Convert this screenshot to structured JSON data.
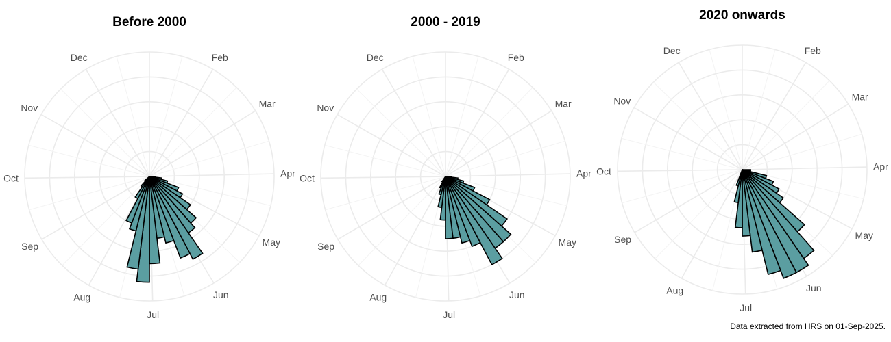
{
  "caption": "Data extracted from HRS on 01-Sep-2025.",
  "colors": {
    "bar_fill": "#5b9ea1",
    "bar_edge": "#000000",
    "grid": "#ebebeb",
    "label": "#4d4d4d"
  },
  "chart_data": [
    {
      "type": "polar-histogram",
      "title": "Before 2000",
      "angular_ticks": [
        "Feb",
        "Mar",
        "Apr",
        "May",
        "Jun",
        "Jul",
        "Aug",
        "Sep",
        "Oct",
        "Nov",
        "Dec"
      ],
      "angular_unit": "week of year",
      "bins": [
        {
          "week": 14,
          "count": 1
        },
        {
          "week": 15,
          "count": 2
        },
        {
          "week": 16,
          "count": 3
        },
        {
          "week": 17,
          "count": 5
        },
        {
          "week": 18,
          "count": 6
        },
        {
          "week": 19,
          "count": 8
        },
        {
          "week": 20,
          "count": 10
        },
        {
          "week": 21,
          "count": 11
        },
        {
          "week": 22,
          "count": 15
        },
        {
          "week": 23,
          "count": 14
        },
        {
          "week": 24,
          "count": 11
        },
        {
          "week": 25,
          "count": 10
        },
        {
          "week": 26,
          "count": 14
        },
        {
          "week": 27,
          "count": 17
        },
        {
          "week": 28,
          "count": 15
        },
        {
          "week": 29,
          "count": 9
        },
        {
          "week": 30,
          "count": 8
        },
        {
          "week": 31,
          "count": 4
        },
        {
          "week": 32,
          "count": 2
        },
        {
          "week": 33,
          "count": 1
        }
      ],
      "radial_gridlines": [
        4,
        8,
        12,
        16,
        20
      ]
    },
    {
      "type": "polar-histogram",
      "title": "2000 - 2019",
      "angular_ticks": [
        "Feb",
        "Mar",
        "Apr",
        "May",
        "Jun",
        "Jul",
        "Aug",
        "Sep",
        "Oct",
        "Nov",
        "Dec"
      ],
      "angular_unit": "week of year",
      "bins": [
        {
          "week": 14,
          "count": 1
        },
        {
          "week": 15,
          "count": 2
        },
        {
          "week": 16,
          "count": 3
        },
        {
          "week": 17,
          "count": 5
        },
        {
          "week": 18,
          "count": 8
        },
        {
          "week": 19,
          "count": 12
        },
        {
          "week": 20,
          "count": 14
        },
        {
          "week": 21,
          "count": 14
        },
        {
          "week": 22,
          "count": 16
        },
        {
          "week": 23,
          "count": 12
        },
        {
          "week": 24,
          "count": 11
        },
        {
          "week": 25,
          "count": 10
        },
        {
          "week": 26,
          "count": 10
        },
        {
          "week": 27,
          "count": 7
        },
        {
          "week": 28,
          "count": 5
        },
        {
          "week": 29,
          "count": 3
        },
        {
          "week": 30,
          "count": 2
        },
        {
          "week": 31,
          "count": 1
        }
      ],
      "radial_gridlines": [
        4,
        8,
        12,
        16,
        20
      ]
    },
    {
      "type": "polar-histogram",
      "title": "2020 onwards",
      "angular_ticks": [
        "Feb",
        "Mar",
        "Apr",
        "May",
        "Jun",
        "Jul",
        "Aug",
        "Sep",
        "Oct",
        "Nov",
        "Dec"
      ],
      "angular_unit": "week of year",
      "bins": [
        {
          "week": 14,
          "count": 1
        },
        {
          "week": 15,
          "count": 1
        },
        {
          "week": 16,
          "count": 3
        },
        {
          "week": 17,
          "count": 4
        },
        {
          "week": 18,
          "count": 5
        },
        {
          "week": 19,
          "count": 6
        },
        {
          "week": 20,
          "count": 10
        },
        {
          "week": 21,
          "count": 13
        },
        {
          "week": 22,
          "count": 14
        },
        {
          "week": 23,
          "count": 14
        },
        {
          "week": 24,
          "count": 13
        },
        {
          "week": 25,
          "count": 10
        },
        {
          "week": 26,
          "count": 8
        },
        {
          "week": 27,
          "count": 7
        },
        {
          "week": 28,
          "count": 4
        },
        {
          "week": 29,
          "count": 2
        }
      ],
      "radial_gridlines": [
        3,
        6,
        9,
        12,
        15
      ]
    }
  ]
}
